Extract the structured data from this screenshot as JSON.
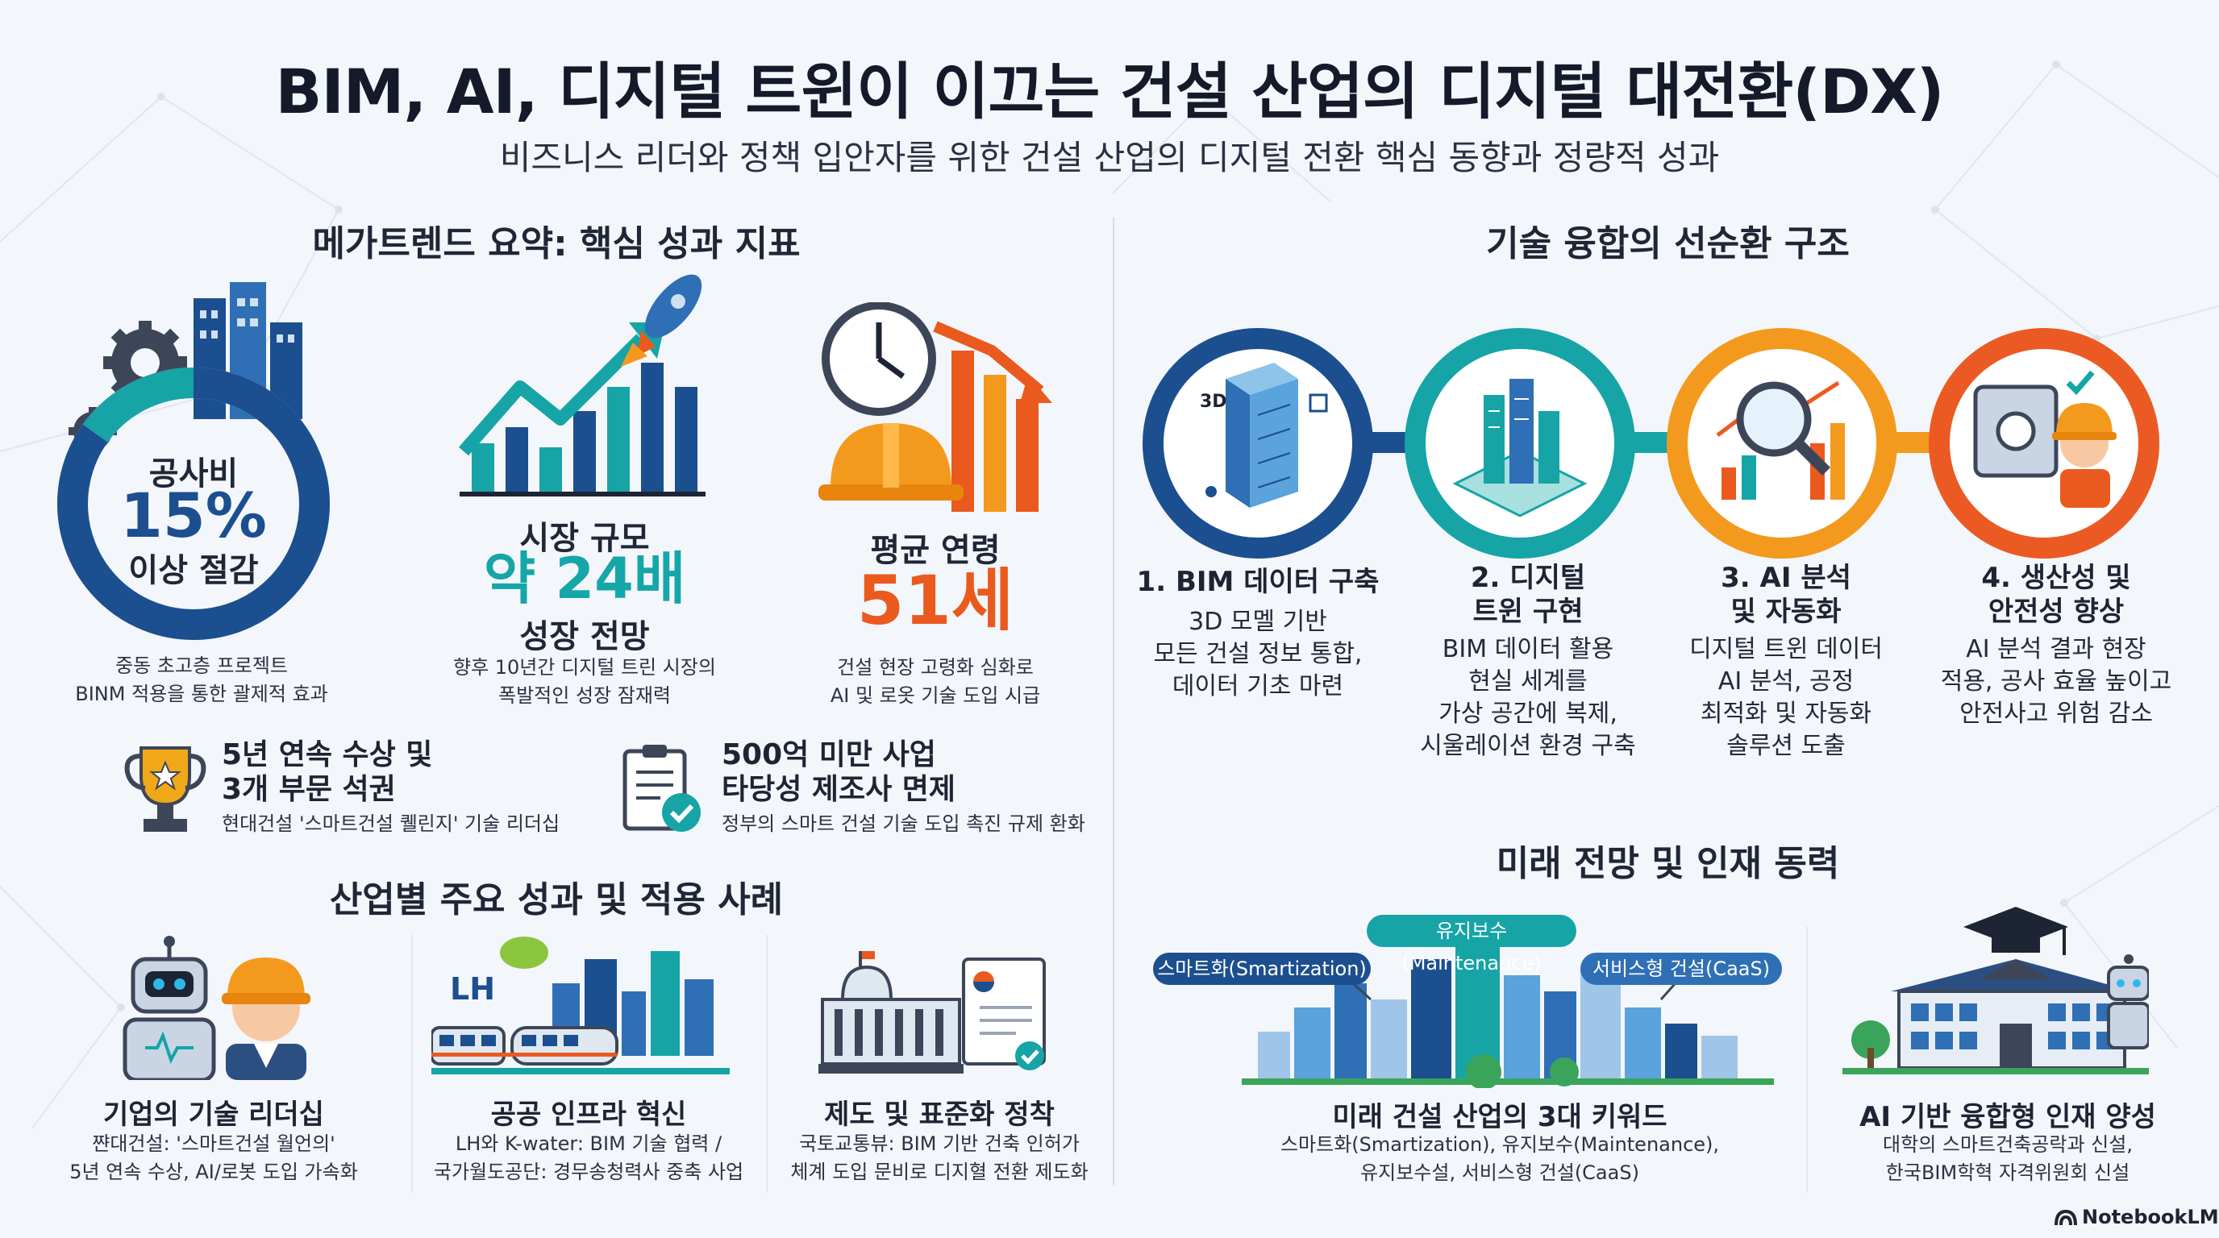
{
  "header": {
    "title": "BIM, AI, 디지털 트윈이 이끄는 건설 산업의 디지털 대전환(DX)",
    "subtitle": "비즈니스 리더와 정책 입안자를 위한 건설 산업의 디지털 전환 핵심 동향과 정량적 성과"
  },
  "metrics": {
    "heading": "메가트렌드 요약: 핵심 성과 지표",
    "cost": {
      "label_top": "공사비",
      "value": "15%",
      "label_bottom": "이상 절감",
      "desc1": "중동 초고층 프로젝트",
      "desc2": "BINM 적용을 통한 괄제적 효과"
    },
    "market": {
      "label_top": "시장 규모",
      "value": "약 24배",
      "label_bottom": "성장 전망",
      "desc1": "향후 10년간 디지털 트린 시장의",
      "desc2": "폭발적인 성장 잠재력"
    },
    "age": {
      "label_top": "평균 연령",
      "value": "51세",
      "desc1": "건설 현장 고령화 심화로",
      "desc2": "AI 및 로옷 기술 도입 시급"
    }
  },
  "achievements": [
    {
      "title1": "5년 연속 수상 및",
      "title2": "3개 부문 석권",
      "desc": "현대건설 '스마트건설 퀠린지' 기술 리더십"
    },
    {
      "title1": "500억 미만 사업",
      "title2": "타당성 제조사 면제",
      "desc": "정부의 스마트 건설 기술 도입 촉진 규제 환화"
    }
  ],
  "cases": {
    "heading": "산업별 주요 성과 및 적용 사례",
    "items": [
      {
        "title": "기업의 기술 리더십",
        "desc1": "쨘대건설: '스마트건설 월언의'",
        "desc2": "5년 연속 수상, AI/로봇 도입 가속화"
      },
      {
        "title": "공공 인프라 혁신",
        "logo": "LH",
        "desc1": "LH와 K-water: BIM 기술 협력 /",
        "desc2": "국가월도공단: 경무송청력사 중축 사업"
      },
      {
        "title": "제도 및 표준화 정착",
        "desc1": "국토교통뷰: BIM 기반 건축 인허가",
        "desc2": "체계 도입 문비로 디지혈 전환 제도화"
      }
    ]
  },
  "cycle": {
    "heading": "기술 융합의 선순환 구조",
    "icon_text": "3D",
    "steps": [
      {
        "title1": "1. BIM 데이터 구축",
        "title2": "",
        "lines": [
          "3D 모멜 기반",
          "모든 건설 정보 통합,",
          "데이터 기초 마련"
        ],
        "color": "#1b4f8f"
      },
      {
        "title1": "2. 디지털",
        "title2": "트윈 구현",
        "lines": [
          "BIM 데이터 활용",
          "현실 세계를",
          "가상 공간에 복제,",
          "시울레이션 환경 구축"
        ],
        "color": "#16a4a6"
      },
      {
        "title1": "3. AI 분석",
        "title2": "및 자동화",
        "lines": [
          "디지털 트윈 데이터",
          "AI 분석, 공정",
          "최적화 및 자동화",
          "솔루션 도출"
        ],
        "color": "#f39a1e"
      },
      {
        "title1": "4. 생산성 및",
        "title2": "안전성 향상",
        "lines": [
          "AI 분석 결과 현장",
          "적용, 공사 효율 높이고",
          "안전사고 위험 감소"
        ],
        "color": "#ec5a24"
      }
    ]
  },
  "future": {
    "heading": "미래 전망 및 인재 동력",
    "pills": {
      "maintenance": "유지보수(Maintenance)",
      "smart": "스마트화(Smartization)",
      "caas": "서비스형 건설(CaaS)"
    },
    "keywords": {
      "title": "미래 건설 산업의 3대 키워드",
      "desc1": "스마트화(Smartization), 유지보수(Maintenance),",
      "desc2": "유지보수설, 서비스형 건설(CaaS)"
    },
    "talent": {
      "title": "AI 기반 융합형 인재 양성",
      "desc1": "대학의 스마트건축공락과 신설,",
      "desc2": "한국BIM학혁 자격위원회 신설"
    }
  },
  "branding": {
    "logo_text": "NotebookLM"
  },
  "colors": {
    "navy": "#1b4f8f",
    "teal": "#16a4a6",
    "amber": "#f39a1e",
    "orange": "#ec5a24"
  }
}
